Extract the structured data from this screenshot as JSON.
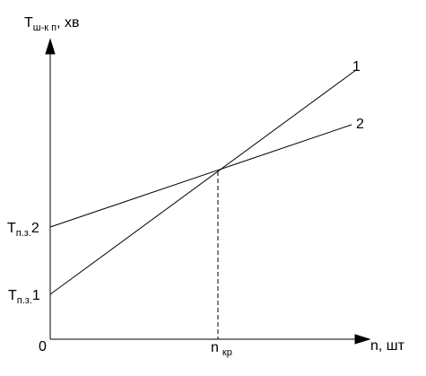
{
  "y_axis_label": {
    "main": "T",
    "sub": "ш-к п",
    "suffix": ", хв"
  },
  "x_axis_label": "n, шт",
  "origin": "0",
  "lines": [
    {
      "label": "1"
    },
    {
      "label": "2"
    }
  ],
  "intercepts": [
    {
      "main": "T",
      "sub": "п.з.",
      "suffix": "2"
    },
    {
      "main": "T",
      "sub": "п.з.",
      "suffix": "1"
    }
  ],
  "critical": {
    "main": "n",
    "sub": "кр"
  }
}
